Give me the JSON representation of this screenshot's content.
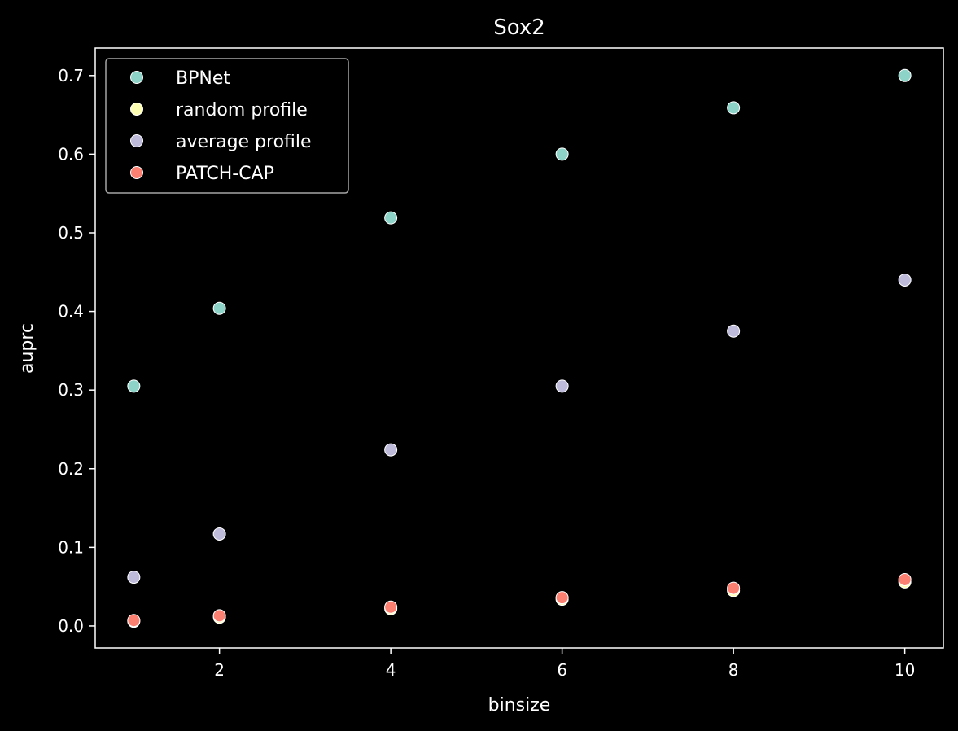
{
  "chart_data": {
    "type": "scatter",
    "title": "Sox2",
    "xlabel": "binsize",
    "ylabel": "auprc",
    "xlim": [
      0.55,
      10.45
    ],
    "ylim": [
      -0.028,
      0.735
    ],
    "xticks": [
      2,
      4,
      6,
      8,
      10
    ],
    "yticks": [
      0.0,
      0.1,
      0.2,
      0.3,
      0.4,
      0.5,
      0.6,
      0.7
    ],
    "grid": false,
    "legend_position": "top-left",
    "x": [
      1,
      2,
      4,
      6,
      8,
      10
    ],
    "series": [
      {
        "name": "BPNet",
        "color": "#8dd3c7",
        "values": [
          0.305,
          0.404,
          0.519,
          0.6,
          0.659,
          0.7
        ]
      },
      {
        "name": "random profile",
        "color": "#ffffb3",
        "values": [
          0.006,
          0.011,
          0.022,
          0.034,
          0.045,
          0.056
        ]
      },
      {
        "name": "average profile",
        "color": "#bebada",
        "values": [
          0.062,
          0.117,
          0.224,
          0.305,
          0.375,
          0.44
        ]
      },
      {
        "name": "PATCH-CAP",
        "color": "#fb8072",
        "values": [
          0.007,
          0.013,
          0.024,
          0.036,
          0.048,
          0.059
        ]
      }
    ]
  }
}
